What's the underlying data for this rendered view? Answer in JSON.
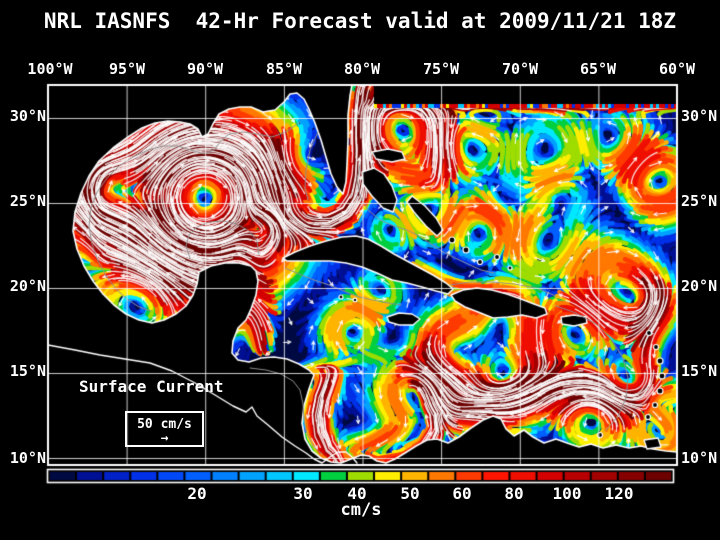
{
  "title": "NRL IASNFS  42-Hr Forecast valid at 2009/11/21 18Z",
  "axes": {
    "lon": [
      "100°W",
      "95°W",
      "90°W",
      "85°W",
      "80°W",
      "75°W",
      "70°W",
      "65°W",
      "60°W"
    ],
    "lat_left": [
      "30°N",
      "25°N",
      "20°N",
      "15°N",
      "10°N"
    ],
    "lat_right": [
      "30°N",
      "25°N",
      "20°N",
      "15°N",
      "10°N"
    ]
  },
  "legend": {
    "title": "Surface Current",
    "scale_value": "50 cm/s",
    "arrow_glyph": "→"
  },
  "colorbar": {
    "tick_labels": [
      "20",
      "30",
      "40",
      "50",
      "60",
      "80",
      "100",
      "120"
    ],
    "unit": "cm/s",
    "segment_colors": [
      "#000a42",
      "#001095",
      "#0020c8",
      "#0030e8",
      "#0048f8",
      "#0060ff",
      "#0080ff",
      "#00a2ff",
      "#00c8ff",
      "#00e8ff",
      "#00cf3f",
      "#9fdc00",
      "#ffee00",
      "#ffb400",
      "#ff7800",
      "#ff3a00",
      "#ff1400",
      "#ef0e00",
      "#d40000",
      "#b80000",
      "#a30000",
      "#870000",
      "#6d0000"
    ]
  },
  "map": {
    "ocean": "#000a42",
    "land": "#000000",
    "coastline": "#ffffff",
    "bathymetry": "#8f8f8f",
    "grid": "#ffffff",
    "border": "#ffffff",
    "text": "#ffffff"
  }
}
